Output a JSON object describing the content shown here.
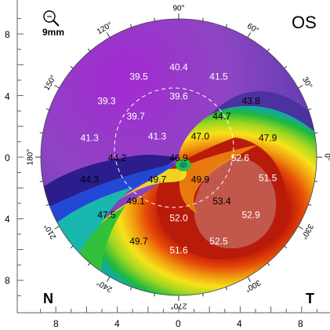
{
  "eye_label": "OS",
  "zoom_label": "9mm",
  "corner_left": "N",
  "corner_right": "T",
  "left_axis_ticks": [
    "8",
    "4",
    "0",
    "4",
    "8"
  ],
  "bottom_axis_ticks": [
    "8",
    "4",
    "0",
    "4",
    "8"
  ],
  "angle_labels": [
    {
      "deg": 90,
      "label": "90°"
    },
    {
      "deg": 60,
      "label": "60°"
    },
    {
      "deg": 30,
      "label": "30°"
    },
    {
      "deg": 0,
      "label": "0°"
    },
    {
      "deg": 330,
      "label": "330°"
    },
    {
      "deg": 300,
      "label": "300°"
    },
    {
      "deg": 270,
      "label": "270°"
    },
    {
      "deg": 240,
      "label": "240°"
    },
    {
      "deg": 210,
      "label": "210°"
    },
    {
      "deg": 180,
      "label": "180°"
    },
    {
      "deg": 150,
      "label": "150°"
    },
    {
      "deg": 120,
      "label": "120°"
    }
  ],
  "readings": [
    {
      "mm_x": 0,
      "mm_y": 5.8,
      "value": "40.4",
      "light": true
    },
    {
      "mm_x": -2.6,
      "mm_y": 5.2,
      "value": "39.5",
      "light": true
    },
    {
      "mm_x": 2.6,
      "mm_y": 5.2,
      "value": "41.5",
      "light": true
    },
    {
      "mm_x": -4.7,
      "mm_y": 3.6,
      "value": "39.3",
      "light": true
    },
    {
      "mm_x": 0,
      "mm_y": 3.9,
      "value": "39.6",
      "light": true
    },
    {
      "mm_x": 4.7,
      "mm_y": 3.6,
      "value": "43.8",
      "light": false
    },
    {
      "mm_x": -2.8,
      "mm_y": 2.6,
      "value": "39.7",
      "light": true
    },
    {
      "mm_x": 2.8,
      "mm_y": 2.6,
      "value": "44.7",
      "light": false
    },
    {
      "mm_x": -5.8,
      "mm_y": 1.2,
      "value": "41.3",
      "light": true
    },
    {
      "mm_x": -1.4,
      "mm_y": 1.3,
      "value": "41.3",
      "light": true
    },
    {
      "mm_x": 1.4,
      "mm_y": 1.3,
      "value": "47.0",
      "light": false
    },
    {
      "mm_x": 5.8,
      "mm_y": 1.2,
      "value": "47.9",
      "light": false
    },
    {
      "mm_x": -4.0,
      "mm_y": -0.1,
      "value": "44.2",
      "light": false
    },
    {
      "mm_x": 0,
      "mm_y": -0.1,
      "value": "46.9",
      "light": false
    },
    {
      "mm_x": 4.0,
      "mm_y": -0.1,
      "value": "52.6",
      "light": true
    },
    {
      "mm_x": -5.8,
      "mm_y": -1.5,
      "value": "44.3",
      "light": false
    },
    {
      "mm_x": -1.4,
      "mm_y": -1.5,
      "value": "49.7",
      "light": false
    },
    {
      "mm_x": 1.4,
      "mm_y": -1.5,
      "value": "49.9",
      "light": false
    },
    {
      "mm_x": 5.8,
      "mm_y": -1.4,
      "value": "51.5",
      "light": true
    },
    {
      "mm_x": -2.8,
      "mm_y": -2.9,
      "value": "49.1",
      "light": false
    },
    {
      "mm_x": 2.8,
      "mm_y": -2.9,
      "value": "53.4",
      "light": false
    },
    {
      "mm_x": -4.7,
      "mm_y": -3.8,
      "value": "47.5",
      "light": false
    },
    {
      "mm_x": 0,
      "mm_y": -4.0,
      "value": "52.0",
      "light": true
    },
    {
      "mm_x": 4.7,
      "mm_y": -3.8,
      "value": "52.9",
      "light": true
    },
    {
      "mm_x": -2.6,
      "mm_y": -5.5,
      "value": "49.7",
      "light": false
    },
    {
      "mm_x": 0,
      "mm_y": -6.1,
      "value": "51.6",
      "light": true
    },
    {
      "mm_x": 2.6,
      "mm_y": -5.5,
      "value": "52.5",
      "light": true
    }
  ]
}
